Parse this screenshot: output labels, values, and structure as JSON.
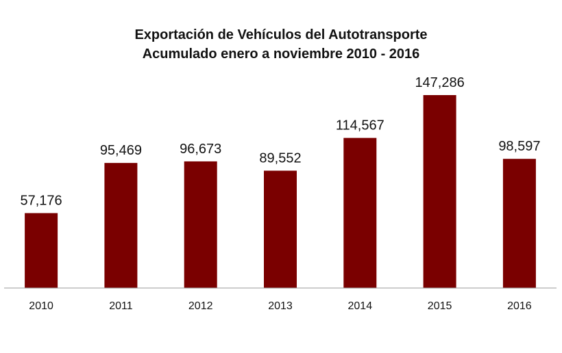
{
  "chart_data": {
    "type": "bar",
    "title": "Exportación de Vehículos del Autotransporte",
    "subtitle": "Acumulado enero a noviembre 2010 - 2016",
    "categories": [
      "2010",
      "2011",
      "2012",
      "2013",
      "2014",
      "2015",
      "2016"
    ],
    "values": [
      57176,
      95469,
      96673,
      89552,
      114567,
      147286,
      98597
    ],
    "value_labels": [
      "57,176",
      "95,469",
      "96,673",
      "89,552",
      "114,567",
      "147,286",
      "98,597"
    ],
    "xlabel": "",
    "ylabel": "",
    "ylim": [
      0,
      160000
    ],
    "grid": false,
    "legend": "none",
    "bar_color": "#7a0000",
    "axis_color": "#999999"
  }
}
